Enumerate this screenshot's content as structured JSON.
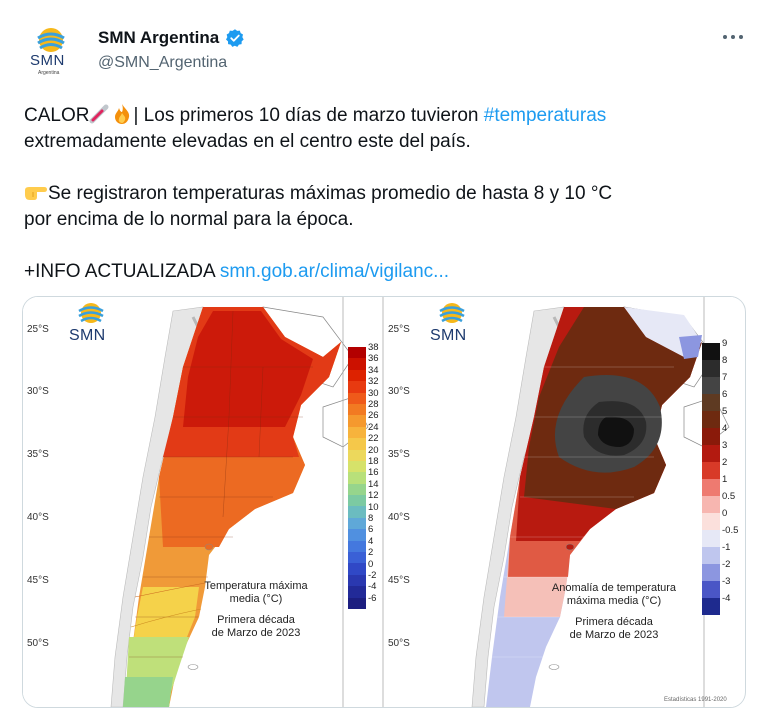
{
  "author": {
    "display_name": "SMN Argentina",
    "handle": "@SMN_Argentina",
    "avatar_text": "SMN",
    "avatar_subtext": "Argentina"
  },
  "tweet": {
    "line1_prefix": "CALOR",
    "line1_after_emoji": "| Los primeros 10 días de marzo tuvieron ",
    "hashtag": "#temperaturas",
    "line2": "extremadamente elevadas en el centro este del país.",
    "line3": "Se registraron temperaturas máximas promedio de hasta 8 y 10 °C",
    "line4": "por encima de lo normal para la época.",
    "info_prefix": "+INFO ACTUALIZADA ",
    "link": "smn.gob.ar/clima/vigilanc..."
  },
  "icons": {
    "verified": "verified-badge-icon",
    "more": "more-options-icon",
    "thermometer": "thermometer-emoji",
    "fire": "fire-emoji",
    "pointing": "pointing-hand-emoji"
  },
  "colors": {
    "link": "#1d9bf0",
    "verified": "#1d9bf0",
    "text": "#0f1419",
    "muted": "#536471"
  },
  "media": {
    "left_map": {
      "logo": "SMN",
      "lat_labels": [
        "25°S",
        "30°S",
        "35°S",
        "40°S",
        "45°S",
        "50°S"
      ],
      "caption_title": "Temperatura máxima",
      "caption_title2": "media (°C)",
      "caption_period": "Primera década",
      "caption_period2": "de Marzo de 2023",
      "legend_values": [
        "38",
        "36",
        "34",
        "32",
        "30",
        "28",
        "26",
        "24",
        "22",
        "20",
        "18",
        "16",
        "14",
        "12",
        "10",
        "8",
        "6",
        "4",
        "2",
        "0",
        "-2",
        "-4",
        "-6"
      ],
      "legend_colors": [
        "#b30000",
        "#cc1100",
        "#dd2200",
        "#e83a10",
        "#ef5a1a",
        "#f27a22",
        "#f5992e",
        "#f7b33c",
        "#f5c84a",
        "#ecd85c",
        "#d6e26a",
        "#b8e07a",
        "#96d58c",
        "#7ccaa2",
        "#6bbcc0",
        "#5fa8d8",
        "#5090e0",
        "#4478de",
        "#3a60d6",
        "#3048c6",
        "#2a38b0",
        "#222a98",
        "#1c1e80"
      ]
    },
    "right_map": {
      "logo": "SMN",
      "lat_labels": [
        "25°S",
        "30°S",
        "35°S",
        "40°S",
        "45°S",
        "50°S"
      ],
      "caption_title": "Anomalía de temperatura",
      "caption_title2": "máxima media (°C)",
      "caption_period": "Primera década",
      "caption_period2": "de Marzo de 2023",
      "legend_values": [
        "9",
        "8",
        "7",
        "6",
        "5",
        "4",
        "3",
        "2",
        "1",
        "0.5",
        "0",
        "-0.5",
        "-1",
        "-2",
        "-3",
        "-4"
      ],
      "legend_colors": [
        "#111111",
        "#2c2c2c",
        "#444444",
        "#5e3a22",
        "#6e2a10",
        "#8a1a0a",
        "#b31a10",
        "#d83a28",
        "#ee7a70",
        "#f7b6b0",
        "#fbe0dc",
        "#e6e8f6",
        "#bfc6ee",
        "#8c96e0",
        "#4a56c6",
        "#1e2a8e"
      ],
      "footer": "Estadísticas 1991-2020"
    }
  }
}
